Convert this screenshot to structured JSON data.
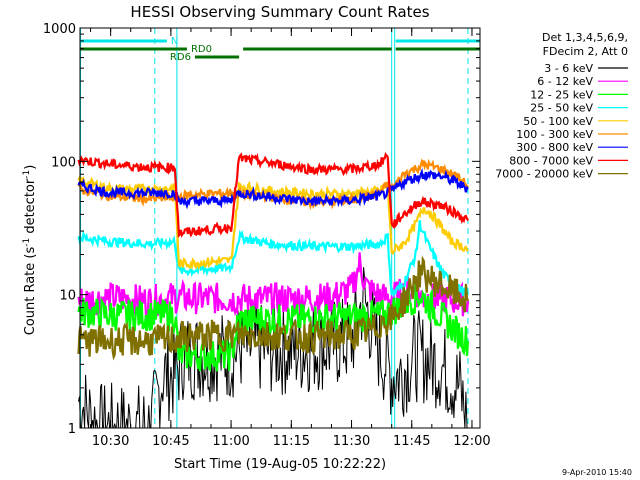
{
  "chart_data": {
    "type": "line",
    "title": "HESSI Observing Summary Count Rates",
    "xlabel": "Start Time (19-Aug-05 10:22:22)",
    "ylabel_main": "Count Rate (s",
    "ylabel_sup1": "-1",
    "ylabel_mid": " detector",
    "ylabel_sup2": "-1",
    "ylabel_end": ")",
    "y_scale": "log",
    "ylim": [
      1,
      1000
    ],
    "xlim": [
      "10:22:22",
      "12:02:00"
    ],
    "x_ticks": [
      "10:30",
      "10:45",
      "11:00",
      "11:15",
      "11:30",
      "11:45",
      "12:00"
    ],
    "y_ticks": [
      "1",
      "10",
      "100",
      "1000"
    ],
    "legend_header": [
      "Det 1,3,4,5,6,9,",
      "FDecim 2, Att 0"
    ],
    "legend_position": "top-right, outside plot",
    "footer_date": "9-Apr-2010 15:40",
    "flags": [
      {
        "label": "N",
        "color": "#00e5e5"
      },
      {
        "label": "RD0",
        "color": "#007000"
      },
      {
        "label": "RD6",
        "color": "#007000"
      }
    ],
    "series": [
      {
        "name": "3 - 6 keV",
        "color": "#000000",
        "points": [
          [
            "10:22",
            "1.6"
          ],
          [
            "10:27",
            "1.0"
          ],
          [
            "10:36",
            "1.0"
          ],
          [
            "10:40",
            "1.0"
          ],
          [
            "10:43",
            "2.5"
          ],
          [
            "10:46",
            "2.5"
          ],
          [
            "10:48",
            "3.5"
          ],
          [
            "10:55",
            "3.5"
          ],
          [
            "11:00",
            "3.5"
          ],
          [
            "11:02",
            "4.0"
          ],
          [
            "11:15",
            "3.8"
          ],
          [
            "11:30",
            "4.5"
          ],
          [
            "11:33",
            "9.5"
          ],
          [
            "11:36",
            "4.5"
          ],
          [
            "11:40",
            "2.5"
          ],
          [
            "11:42",
            "2.5"
          ],
          [
            "11:46",
            "3.5"
          ],
          [
            "11:52",
            "3.0"
          ],
          [
            "11:57",
            "2.0"
          ],
          [
            "11:59",
            "1.0"
          ]
        ]
      },
      {
        "name": "6 - 12 keV",
        "color": "#ff00ff",
        "points": [
          [
            "10:22",
            "9.0"
          ],
          [
            "10:30",
            "9.5"
          ],
          [
            "10:40",
            "9.0"
          ],
          [
            "10:45",
            "9.5"
          ],
          [
            "11:00",
            "9.3"
          ],
          [
            "11:15",
            "9.3"
          ],
          [
            "11:25",
            "9.5"
          ],
          [
            "11:30",
            "11.0"
          ],
          [
            "11:32",
            "17.0"
          ],
          [
            "11:34",
            "11.0"
          ],
          [
            "11:38",
            "9.5"
          ],
          [
            "11:40",
            "9.5"
          ],
          [
            "11:45",
            "11.0"
          ],
          [
            "11:48",
            "9.5"
          ],
          [
            "11:59",
            "9.0"
          ]
        ]
      },
      {
        "name": "12 - 25 keV",
        "color": "#00ff00",
        "points": [
          [
            "10:22",
            "7.5"
          ],
          [
            "10:30",
            "7.0"
          ],
          [
            "10:40",
            "7.0"
          ],
          [
            "10:46",
            "7.0"
          ],
          [
            "10:47",
            "3.5"
          ],
          [
            "11:00",
            "3.5"
          ],
          [
            "11:02",
            "6.5"
          ],
          [
            "11:15",
            "6.5"
          ],
          [
            "11:30",
            "6.8"
          ],
          [
            "11:38",
            "7.0"
          ],
          [
            "11:40",
            "7.5"
          ],
          [
            "11:43",
            "8.5"
          ],
          [
            "11:47",
            "10.0"
          ],
          [
            "11:52",
            "7.0"
          ],
          [
            "11:57",
            "5.0"
          ],
          [
            "11:59",
            "4.5"
          ]
        ]
      },
      {
        "name": "25 - 50 keV",
        "color": "#00ffff",
        "points": [
          [
            "10:22",
            "27"
          ],
          [
            "10:30",
            "25"
          ],
          [
            "10:40",
            "24"
          ],
          [
            "10:46",
            "25"
          ],
          [
            "10:47",
            "15"
          ],
          [
            "11:00",
            "16"
          ],
          [
            "11:02",
            "27"
          ],
          [
            "11:10",
            "24"
          ],
          [
            "11:20",
            "23"
          ],
          [
            "11:30",
            "23"
          ],
          [
            "11:37",
            "24"
          ],
          [
            "11:39",
            "27"
          ],
          [
            "11:40",
            "10"
          ],
          [
            "11:43",
            "12"
          ],
          [
            "11:46",
            "20"
          ],
          [
            "11:47",
            "34"
          ],
          [
            "11:49",
            "24"
          ],
          [
            "11:53",
            "14"
          ],
          [
            "11:57",
            "11"
          ],
          [
            "11:59",
            "10"
          ]
        ]
      },
      {
        "name": "50 - 100 keV",
        "color": "#ffcc00",
        "points": [
          [
            "10:22",
            "72"
          ],
          [
            "10:30",
            "62"
          ],
          [
            "10:40",
            "62"
          ],
          [
            "10:46",
            "63"
          ],
          [
            "10:47",
            "17"
          ],
          [
            "11:00",
            "18"
          ],
          [
            "11:02",
            "65"
          ],
          [
            "11:10",
            "60"
          ],
          [
            "11:20",
            "57"
          ],
          [
            "11:30",
            "57"
          ],
          [
            "11:37",
            "60"
          ],
          [
            "11:39",
            "66"
          ],
          [
            "11:40",
            "21"
          ],
          [
            "11:43",
            "24"
          ],
          [
            "11:46",
            "34"
          ],
          [
            "11:48",
            "45"
          ],
          [
            "11:50",
            "40"
          ],
          [
            "11:55",
            "25"
          ],
          [
            "11:59",
            "22"
          ]
        ]
      },
      {
        "name": "100 - 300 keV",
        "color": "#ff8c00",
        "points": [
          [
            "10:22",
            "62"
          ],
          [
            "10:30",
            "55"
          ],
          [
            "10:40",
            "52"
          ],
          [
            "10:46",
            "54"
          ],
          [
            "10:50",
            "56"
          ],
          [
            "11:00",
            "58"
          ],
          [
            "11:10",
            "54"
          ],
          [
            "11:20",
            "49"
          ],
          [
            "11:30",
            "51"
          ],
          [
            "11:37",
            "57"
          ],
          [
            "11:39",
            "68"
          ],
          [
            "11:40",
            "62"
          ],
          [
            "11:43",
            "80"
          ],
          [
            "11:48",
            "95"
          ],
          [
            "11:52",
            "88"
          ],
          [
            "11:56",
            "78"
          ],
          [
            "11:59",
            "66"
          ]
        ]
      },
      {
        "name": "300 - 800 keV",
        "color": "#0000ff",
        "points": [
          [
            "10:22",
            "66"
          ],
          [
            "10:30",
            "58"
          ],
          [
            "10:40",
            "58"
          ],
          [
            "10:46",
            "58"
          ],
          [
            "10:47",
            "50"
          ],
          [
            "11:00",
            "51"
          ],
          [
            "11:02",
            "58"
          ],
          [
            "11:10",
            "54"
          ],
          [
            "11:20",
            "50"
          ],
          [
            "11:30",
            "51"
          ],
          [
            "11:37",
            "55"
          ],
          [
            "11:39",
            "58"
          ],
          [
            "11:40",
            "60"
          ],
          [
            "11:43",
            "70"
          ],
          [
            "11:48",
            "80"
          ],
          [
            "11:52",
            "78"
          ],
          [
            "11:56",
            "70"
          ],
          [
            "11:59",
            "62"
          ]
        ]
      },
      {
        "name": "800 - 7000 keV",
        "color": "#ff0000",
        "points": [
          [
            "10:22",
            "103"
          ],
          [
            "10:30",
            "95"
          ],
          [
            "10:40",
            "90"
          ],
          [
            "10:46",
            "90"
          ],
          [
            "10:47",
            "29"
          ],
          [
            "11:00",
            "32"
          ],
          [
            "11:02",
            "105"
          ],
          [
            "11:10",
            "97"
          ],
          [
            "11:20",
            "87"
          ],
          [
            "11:30",
            "87"
          ],
          [
            "11:37",
            "95"
          ],
          [
            "11:39",
            "112"
          ],
          [
            "11:40",
            "33"
          ],
          [
            "11:43",
            "40"
          ],
          [
            "11:47",
            "50"
          ],
          [
            "11:52",
            "47"
          ],
          [
            "11:56",
            "41"
          ],
          [
            "11:59",
            "36"
          ]
        ]
      },
      {
        "name": "7000 - 20000 keV",
        "color": "#807000",
        "points": [
          [
            "10:22",
            "4.5"
          ],
          [
            "10:30",
            "4.5"
          ],
          [
            "10:40",
            "4.5"
          ],
          [
            "10:46",
            "4.6"
          ],
          [
            "10:48",
            "4.8"
          ],
          [
            "11:00",
            "5.0"
          ],
          [
            "11:10",
            "5.0"
          ],
          [
            "11:20",
            "4.8"
          ],
          [
            "11:30",
            "5.0"
          ],
          [
            "11:36",
            "5.5"
          ],
          [
            "11:38",
            "6.5"
          ],
          [
            "11:40",
            "6.5"
          ],
          [
            "11:44",
            "10.0"
          ],
          [
            "11:47",
            "14.5"
          ],
          [
            "11:50",
            "13.0"
          ],
          [
            "11:55",
            "10.5"
          ],
          [
            "11:59",
            "9.0"
          ]
        ]
      }
    ]
  }
}
